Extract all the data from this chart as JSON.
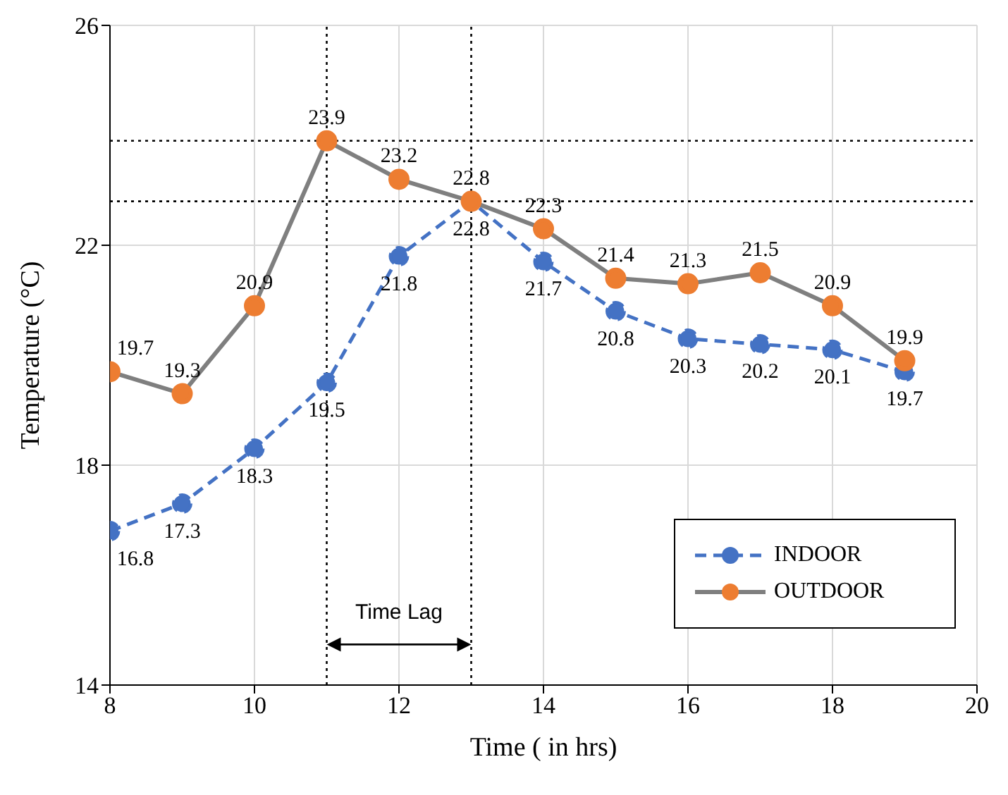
{
  "chart_data": {
    "type": "line",
    "xlabel": "Time ( in hrs)",
    "ylabel": "Temperature (°C)",
    "x": [
      8,
      9,
      10,
      11,
      12,
      13,
      14,
      15,
      16,
      17,
      18,
      19
    ],
    "series": [
      {
        "name": "INDOOR",
        "color": "#4472c4",
        "line_style": "dashed",
        "values": [
          16.8,
          17.3,
          18.3,
          19.5,
          21.8,
          22.8,
          21.7,
          20.8,
          20.3,
          20.2,
          20.1,
          19.7
        ]
      },
      {
        "name": "OUTDOOR",
        "color": "#ed7d31",
        "line_style": "solid",
        "values": [
          19.7,
          19.3,
          20.9,
          23.9,
          23.2,
          22.8,
          22.3,
          21.4,
          21.3,
          21.5,
          20.9,
          19.9
        ]
      }
    ],
    "xlim": [
      8,
      20
    ],
    "xticks": [
      8,
      10,
      12,
      14,
      16,
      18,
      20
    ],
    "ylim": [
      14,
      26
    ],
    "yticks": [
      14,
      18,
      22,
      26
    ],
    "grid": true,
    "legend": "bottom right",
    "marker": "circle",
    "data_labels": true,
    "ref_lines": [
      {
        "axis": "x",
        "value": 11,
        "color": "#000000",
        "line_style": "dotted"
      },
      {
        "axis": "x",
        "value": 13,
        "color": "#000000",
        "line_style": "dotted"
      },
      {
        "axis": "y",
        "value": 23.9,
        "color": "#000000",
        "line_style": "dotted"
      },
      {
        "axis": "y",
        "value": 22.8,
        "color": "#000000",
        "line_style": "dotted"
      }
    ],
    "annotations": [
      "Time Lag"
    ]
  }
}
